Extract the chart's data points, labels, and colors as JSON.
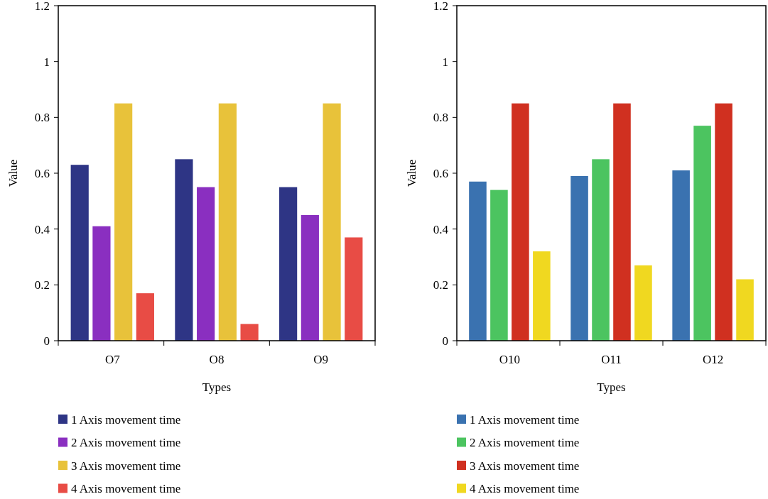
{
  "chart_data": [
    {
      "type": "bar",
      "xlabel": "Types",
      "ylabel": "Value",
      "categories": [
        "O7",
        "O8",
        "O9"
      ],
      "ylim": [
        0,
        1.2
      ],
      "yticks": [
        0,
        0.2,
        0.4,
        0.6,
        0.8,
        1,
        1.2
      ],
      "legend": "bottom",
      "series": [
        {
          "name": "1 Axis movement time",
          "color": "#2e3585",
          "values": [
            0.63,
            0.65,
            0.55
          ]
        },
        {
          "name": "2 Axis movement time",
          "color": "#8a2fc0",
          "values": [
            0.41,
            0.55,
            0.45
          ]
        },
        {
          "name": "3 Axis movement time",
          "color": "#e8c23a",
          "values": [
            0.85,
            0.85,
            0.85
          ]
        },
        {
          "name": "4 Axis movement time",
          "color": "#e84c45",
          "values": [
            0.17,
            0.06,
            0.37
          ]
        }
      ]
    },
    {
      "type": "bar",
      "xlabel": "Types",
      "ylabel": "Value",
      "categories": [
        "O10",
        "O11",
        "O12"
      ],
      "ylim": [
        0,
        1.2
      ],
      "yticks": [
        0,
        0.2,
        0.4,
        0.6,
        0.8,
        1,
        1.2
      ],
      "legend": "bottom",
      "series": [
        {
          "name": "1 Axis movement time",
          "color": "#3a72b0",
          "values": [
            0.57,
            0.59,
            0.61
          ]
        },
        {
          "name": "2 Axis movement time",
          "color": "#4cc460",
          "values": [
            0.54,
            0.65,
            0.77
          ]
        },
        {
          "name": "3 Axis movement time",
          "color": "#d03020",
          "values": [
            0.85,
            0.85,
            0.85
          ]
        },
        {
          "name": "4 Axis movement time",
          "color": "#f0d820",
          "values": [
            0.32,
            0.27,
            0.22
          ]
        }
      ]
    }
  ]
}
